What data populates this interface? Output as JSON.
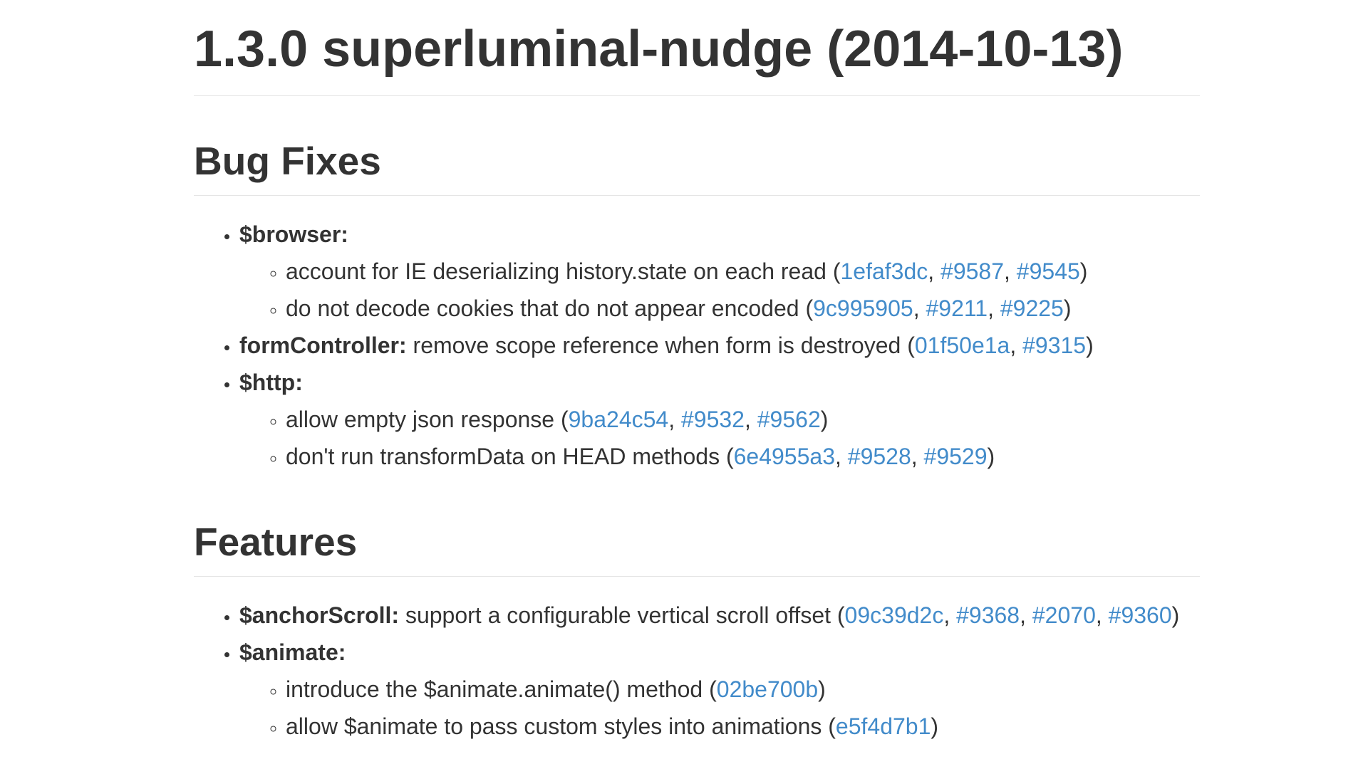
{
  "title": "1.3.0 superluminal-nudge (2014-10-13)",
  "sections": {
    "bug_fixes": {
      "heading": "Bug Fixes",
      "browser": {
        "scope": "$browser:",
        "items": [
          {
            "text": "account for IE deserializing history.state on each read (",
            "links": [
              "1efaf3dc",
              "#9587",
              "#9545"
            ]
          },
          {
            "text": "do not decode cookies that do not appear encoded (",
            "links": [
              "9c995905",
              "#9211",
              "#9225"
            ]
          }
        ]
      },
      "form_controller": {
        "scope": "formController:",
        "text": " remove scope reference when form is destroyed (",
        "links": [
          "01f50e1a",
          "#9315"
        ]
      },
      "http": {
        "scope": "$http:",
        "items": [
          {
            "text": "allow empty json response (",
            "links": [
              "9ba24c54",
              "#9532",
              "#9562"
            ]
          },
          {
            "text": "don't run transformData on HEAD methods (",
            "links": [
              "6e4955a3",
              "#9528",
              "#9529"
            ]
          }
        ]
      }
    },
    "features": {
      "heading": "Features",
      "anchor_scroll": {
        "scope": "$anchorScroll:",
        "text": " support a configurable vertical scroll offset (",
        "links": [
          "09c39d2c",
          "#9368",
          "#2070",
          "#9360"
        ]
      },
      "animate": {
        "scope": "$animate:",
        "items": [
          {
            "text": "introduce the $animate.animate() method (",
            "links": [
              "02be700b"
            ]
          },
          {
            "text": "allow $animate to pass custom styles into animations (",
            "links": [
              "e5f4d7b1"
            ]
          }
        ]
      }
    }
  },
  "punctuation": {
    "separator": ", ",
    "close": ")"
  },
  "colors": {
    "text": "#333333",
    "link": "#428bca",
    "rule": "#e5e5e5"
  }
}
